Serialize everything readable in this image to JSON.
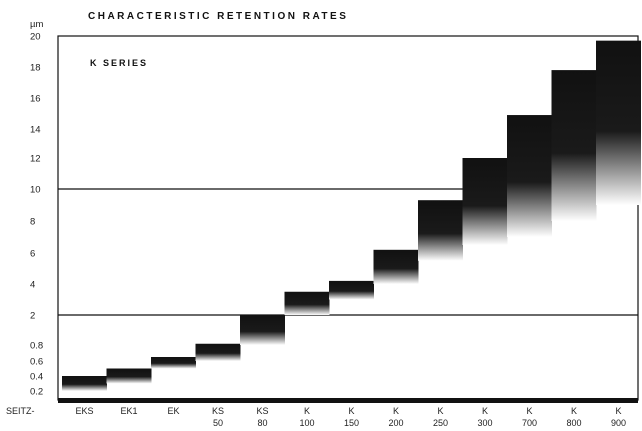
{
  "chart_data": {
    "type": "bar",
    "title": "CHARACTERISTIC RETENTION RATES",
    "subtitle": "K SERIES",
    "ylabel": "µm",
    "x_prefix": "SEITZ-",
    "y_tick_labels": [
      "0.2",
      "0.4",
      "0.6",
      "0.8",
      "2",
      "4",
      "6",
      "8",
      "10",
      "12",
      "14",
      "16",
      "18",
      "20"
    ],
    "categories": [
      {
        "line1": "EKS",
        "line2": ""
      },
      {
        "line1": "EK1",
        "line2": ""
      },
      {
        "line1": "EK",
        "line2": ""
      },
      {
        "line1": "KS",
        "line2": "50"
      },
      {
        "line1": "KS",
        "line2": "80"
      },
      {
        "line1": "K",
        "line2": "100"
      },
      {
        "line1": "K",
        "line2": "150"
      },
      {
        "line1": "K",
        "line2": "200"
      },
      {
        "line1": "K",
        "line2": "250"
      },
      {
        "line1": "K",
        "line2": "300"
      },
      {
        "line1": "K",
        "line2": "700"
      },
      {
        "line1": "K",
        "line2": "800"
      },
      {
        "line1": "K",
        "line2": "900"
      }
    ],
    "ranges": [
      {
        "low": 0.2,
        "high": 0.4
      },
      {
        "low": 0.3,
        "high": 0.5
      },
      {
        "low": 0.5,
        "high": 0.65
      },
      {
        "low": 0.6,
        "high": 0.85
      },
      {
        "low": 0.8,
        "high": 2.0
      },
      {
        "low": 2.0,
        "high": 3.5
      },
      {
        "low": 3.0,
        "high": 4.2
      },
      {
        "low": 4.0,
        "high": 6.2
      },
      {
        "low": 5.5,
        "high": 9.3
      },
      {
        "low": 6.5,
        "high": 12.0
      },
      {
        "low": 7.0,
        "high": 14.9
      },
      {
        "low": 8.0,
        "high": 17.8
      },
      {
        "low": 9.0,
        "high": 19.7
      }
    ],
    "reference_lines": [
      2,
      10
    ],
    "ylim": [
      0,
      20
    ],
    "grid": false,
    "colors": {
      "bar": "#111111",
      "fade": "#ffffff",
      "axis": "#111111"
    }
  }
}
